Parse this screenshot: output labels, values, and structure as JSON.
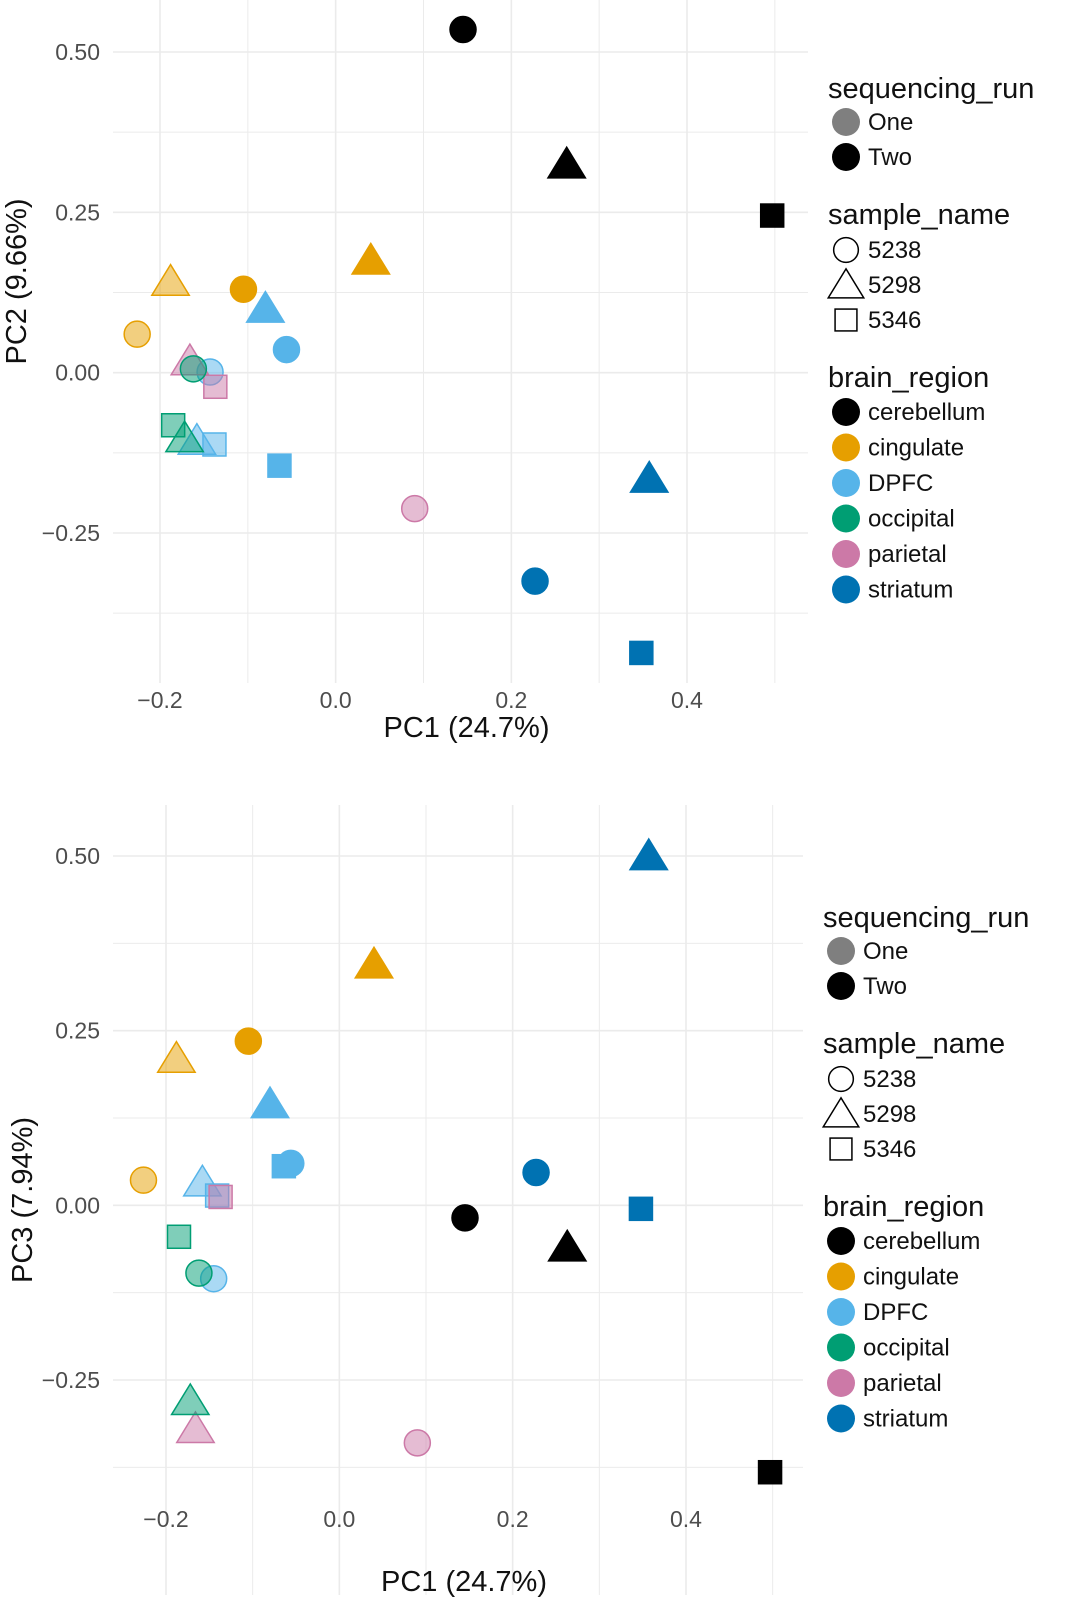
{
  "colors": {
    "cerebellum": "#000000",
    "cingulate": "#E69F00",
    "DPFC": "#56B4E9",
    "occipital": "#009E73",
    "parietal": "#CC79A7",
    "striatum": "#0072B2",
    "run_one_key": "#7f7f7f",
    "run_two_key": "#000000",
    "grid": "#ebebeb"
  },
  "legend": {
    "sequencing_run_title": "sequencing_run",
    "sequencing_run_items": [
      "One",
      "Two"
    ],
    "sample_name_title": "sample_name",
    "sample_name_items": [
      "5238",
      "5298",
      "5346"
    ],
    "brain_region_title": "brain_region",
    "brain_region_items": [
      "cerebellum",
      "cingulate",
      "DPFC",
      "occipital",
      "parietal",
      "striatum"
    ]
  },
  "chart_data": [
    {
      "type": "scatter",
      "xlabel": "PC1 (24.7%)",
      "ylabel": "PC2 (9.66%)",
      "x_ticks": [
        "−0.2",
        "0.0",
        "0.2",
        "0.4"
      ],
      "y_ticks": [
        "0.50",
        "0.25",
        "0.00",
        "−0.25"
      ],
      "x_tick_values": [
        -0.2,
        0.0,
        0.2,
        0.4
      ],
      "y_tick_values": [
        0.5,
        0.25,
        0.0,
        -0.25
      ],
      "xlim": [
        -0.265,
        0.535
      ],
      "ylim": [
        -0.475,
        0.565
      ],
      "grid": true,
      "legend_position": "right",
      "points": [
        {
          "x": 0.145,
          "y": 0.535,
          "shape": "5238",
          "region": "cerebellum",
          "run": "Two"
        },
        {
          "x": 0.263,
          "y": 0.325,
          "shape": "5298",
          "region": "cerebellum",
          "run": "Two"
        },
        {
          "x": 0.497,
          "y": 0.245,
          "shape": "5346",
          "region": "cerebellum",
          "run": "Two"
        },
        {
          "x": 0.04,
          "y": 0.175,
          "shape": "5298",
          "region": "cingulate",
          "run": "Two"
        },
        {
          "x": -0.105,
          "y": 0.13,
          "shape": "5238",
          "region": "cingulate",
          "run": "Two"
        },
        {
          "x": -0.188,
          "y": 0.142,
          "shape": "5298",
          "region": "cingulate",
          "run": "One"
        },
        {
          "x": -0.226,
          "y": 0.06,
          "shape": "5238",
          "region": "cingulate",
          "run": "One"
        },
        {
          "x": -0.08,
          "y": 0.1,
          "shape": "5298",
          "region": "DPFC",
          "run": "Two"
        },
        {
          "x": -0.056,
          "y": 0.036,
          "shape": "5238",
          "region": "DPFC",
          "run": "Two"
        },
        {
          "x": -0.064,
          "y": -0.145,
          "shape": "5346",
          "region": "DPFC",
          "run": "Two"
        },
        {
          "x": -0.143,
          "y": 0.001,
          "shape": "5238",
          "region": "DPFC",
          "run": "One"
        },
        {
          "x": -0.158,
          "y": -0.106,
          "shape": "5298",
          "region": "DPFC",
          "run": "One"
        },
        {
          "x": -0.138,
          "y": -0.112,
          "shape": "5346",
          "region": "DPFC",
          "run": "One"
        },
        {
          "x": -0.166,
          "y": 0.018,
          "shape": "5298",
          "region": "parietal",
          "run": "One"
        },
        {
          "x": -0.137,
          "y": -0.022,
          "shape": "5346",
          "region": "parietal",
          "run": "One"
        },
        {
          "x": 0.09,
          "y": -0.212,
          "shape": "5238",
          "region": "parietal",
          "run": "One"
        },
        {
          "x": -0.162,
          "y": 0.006,
          "shape": "5238",
          "region": "occipital",
          "run": "One"
        },
        {
          "x": -0.185,
          "y": -0.082,
          "shape": "5346",
          "region": "occipital",
          "run": "One"
        },
        {
          "x": -0.172,
          "y": -0.102,
          "shape": "5298",
          "region": "occipital",
          "run": "One"
        },
        {
          "x": 0.357,
          "y": -0.165,
          "shape": "5298",
          "region": "striatum",
          "run": "Two"
        },
        {
          "x": 0.227,
          "y": -0.325,
          "shape": "5238",
          "region": "striatum",
          "run": "Two"
        },
        {
          "x": 0.348,
          "y": -0.437,
          "shape": "5346",
          "region": "striatum",
          "run": "Two"
        }
      ]
    },
    {
      "type": "scatter",
      "xlabel": "PC1 (24.7%)",
      "ylabel": "PC3 (7.94%)",
      "x_ticks": [
        "−0.2",
        "0.0",
        "0.2",
        "0.4"
      ],
      "y_ticks": [
        "0.50",
        "0.25",
        "0.00",
        "−0.25"
      ],
      "x_tick_values": [
        -0.2,
        0.0,
        0.2,
        0.4
      ],
      "y_tick_values": [
        0.5,
        0.25,
        0.0,
        -0.25
      ],
      "xlim": [
        -0.265,
        0.535
      ],
      "ylim": [
        -0.415,
        0.545
      ],
      "grid": true,
      "legend_position": "right",
      "points": [
        {
          "x": 0.357,
          "y": 0.5,
          "shape": "5298",
          "region": "striatum",
          "run": "Two"
        },
        {
          "x": 0.04,
          "y": 0.345,
          "shape": "5298",
          "region": "cingulate",
          "run": "Two"
        },
        {
          "x": -0.105,
          "y": 0.235,
          "shape": "5238",
          "region": "cingulate",
          "run": "Two"
        },
        {
          "x": -0.188,
          "y": 0.21,
          "shape": "5298",
          "region": "cingulate",
          "run": "One"
        },
        {
          "x": -0.226,
          "y": 0.036,
          "shape": "5238",
          "region": "cingulate",
          "run": "One"
        },
        {
          "x": -0.08,
          "y": 0.145,
          "shape": "5298",
          "region": "DPFC",
          "run": "Two"
        },
        {
          "x": -0.064,
          "y": 0.056,
          "shape": "5346",
          "region": "DPFC",
          "run": "Two"
        },
        {
          "x": -0.056,
          "y": 0.06,
          "shape": "5238",
          "region": "DPFC",
          "run": "Two"
        },
        {
          "x": -0.158,
          "y": 0.033,
          "shape": "5298",
          "region": "DPFC",
          "run": "One"
        },
        {
          "x": -0.141,
          "y": 0.014,
          "shape": "5346",
          "region": "DPFC",
          "run": "One"
        },
        {
          "x": -0.145,
          "y": -0.105,
          "shape": "5238",
          "region": "DPFC",
          "run": "One"
        },
        {
          "x": -0.137,
          "y": 0.012,
          "shape": "5346",
          "region": "parietal",
          "run": "One"
        },
        {
          "x": -0.166,
          "y": -0.32,
          "shape": "5298",
          "region": "parietal",
          "run": "One"
        },
        {
          "x": 0.09,
          "y": -0.34,
          "shape": "5238",
          "region": "parietal",
          "run": "One"
        },
        {
          "x": -0.185,
          "y": -0.045,
          "shape": "5346",
          "region": "occipital",
          "run": "One"
        },
        {
          "x": -0.162,
          "y": -0.097,
          "shape": "5238",
          "region": "occipital",
          "run": "One"
        },
        {
          "x": -0.172,
          "y": -0.28,
          "shape": "5298",
          "region": "occipital",
          "run": "One"
        },
        {
          "x": 0.145,
          "y": -0.018,
          "shape": "5238",
          "region": "cerebellum",
          "run": "Two"
        },
        {
          "x": 0.263,
          "y": -0.06,
          "shape": "5298",
          "region": "cerebellum",
          "run": "Two"
        },
        {
          "x": 0.497,
          "y": -0.382,
          "shape": "5346",
          "region": "cerebellum",
          "run": "Two"
        },
        {
          "x": 0.227,
          "y": 0.047,
          "shape": "5238",
          "region": "striatum",
          "run": "Two"
        },
        {
          "x": 0.348,
          "y": -0.005,
          "shape": "5346",
          "region": "striatum",
          "run": "Two"
        }
      ]
    }
  ]
}
